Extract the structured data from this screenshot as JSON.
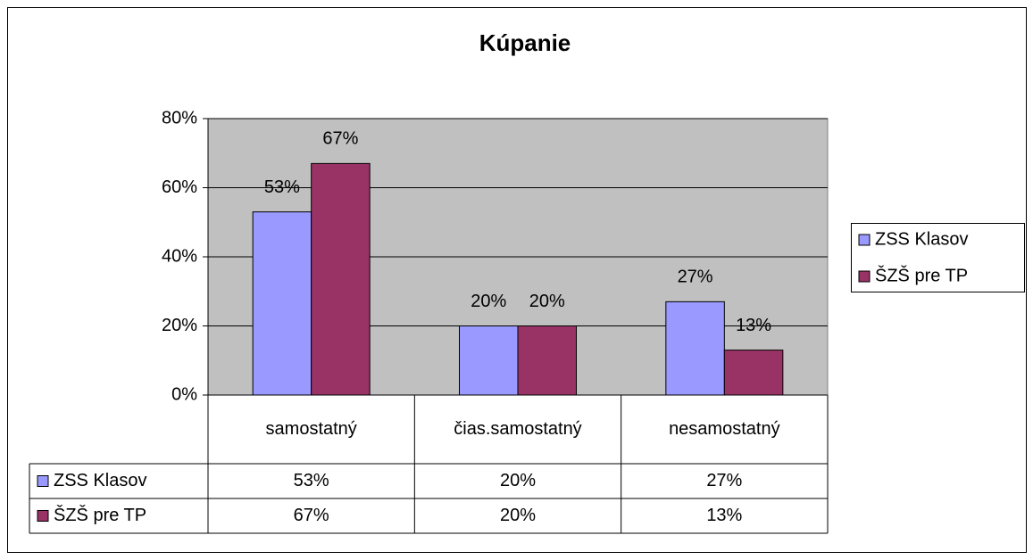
{
  "chart_data": {
    "type": "bar",
    "title": "Kúpanie",
    "categories": [
      "samostatný",
      "čias.samostatný",
      "nesamostatný"
    ],
    "series": [
      {
        "name": "ZSS Klasov",
        "color": "#9999ff",
        "values": [
          53,
          20,
          27
        ],
        "value_labels": [
          "53%",
          "20%",
          "27%"
        ]
      },
      {
        "name": "ŠZŠ pre TP",
        "color": "#993366",
        "values": [
          67,
          20,
          13
        ],
        "value_labels": [
          "67%",
          "20%",
          "13%"
        ]
      }
    ],
    "ylim": [
      0,
      80
    ],
    "yticks": [
      {
        "value": 0,
        "label": "0%"
      },
      {
        "value": 20,
        "label": "20%"
      },
      {
        "value": 40,
        "label": "40%"
      },
      {
        "value": 60,
        "label": "60%"
      },
      {
        "value": 80,
        "label": "80%"
      }
    ],
    "grid": true,
    "legend": "right",
    "plot_background": "#c0c0c0"
  }
}
